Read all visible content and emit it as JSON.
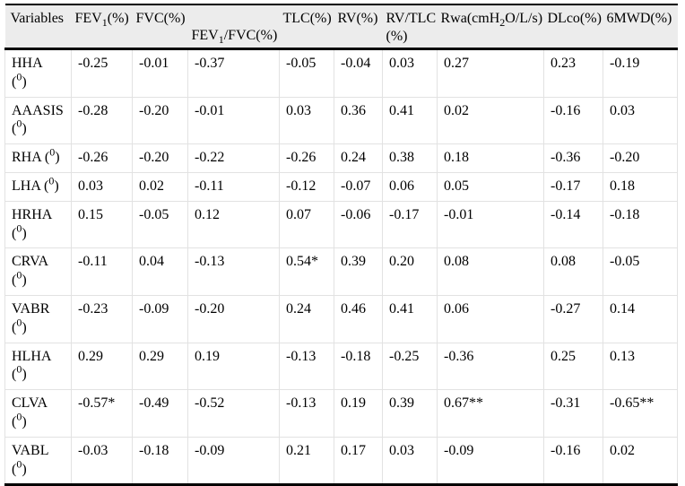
{
  "table": {
    "colors": {
      "header_bg": "#ececec",
      "border_heavy": "#000000",
      "border_light": "#e2e2e2",
      "text": "#000000"
    },
    "headers": [
      {
        "pre": "Variables"
      },
      {
        "pre": "FEV",
        "sub": "1",
        "post": "(%)"
      },
      {
        "pre": "FVC(%)"
      },
      {
        "pre": "FEV",
        "sub": "1",
        "post": "/FVC(%)"
      },
      {
        "pre": "TLC(%)"
      },
      {
        "pre": "RV(%)"
      },
      {
        "line1": "RV/TLC",
        "line2": "(%)"
      },
      {
        "pre": "Rwa(cmH",
        "sub": "2",
        "post": "O/L/s)"
      },
      {
        "pre": "DLco(%)"
      },
      {
        "pre": "6MWD(%)"
      }
    ],
    "rows": [
      {
        "label": {
          "name": "HHA",
          "deg": "0",
          "two_line": true
        },
        "values": [
          "-0.25",
          "-0.01",
          "-0.37",
          "-0.05",
          "-0.04",
          "0.03",
          "0.27",
          "0.23",
          "-0.19"
        ]
      },
      {
        "label": {
          "name": "AAASIS",
          "deg": "0",
          "two_line": true
        },
        "values": [
          "-0.28",
          "-0.20",
          "-0.01",
          "0.03",
          "0.36",
          "0.41",
          "0.02",
          "-0.16",
          "0.03"
        ]
      },
      {
        "label": {
          "name": "RHA",
          "deg": "0",
          "two_line": false
        },
        "values": [
          "-0.26",
          "-0.20",
          "-0.22",
          "-0.26",
          "0.24",
          "0.38",
          "0.18",
          "-0.36",
          "-0.20"
        ]
      },
      {
        "label": {
          "name": "LHA",
          "deg": "0",
          "two_line": false
        },
        "values": [
          "0.03",
          "0.02",
          "-0.11",
          "-0.12",
          "-0.07",
          "0.06",
          "0.05",
          "-0.17",
          "0.18"
        ]
      },
      {
        "label": {
          "name": "HRHA",
          "deg": "0",
          "two_line": true
        },
        "values": [
          "0.15",
          "-0.05",
          "0.12",
          "0.07",
          "-0.06",
          "-0.17",
          "-0.01",
          "-0.14",
          "-0.18"
        ]
      },
      {
        "label": {
          "name": "CRVA",
          "deg": "0",
          "two_line": true
        },
        "values": [
          "-0.11",
          "0.04",
          "-0.13",
          "0.54*",
          "0.39",
          "0.20",
          "0.08",
          "0.08",
          "-0.05"
        ]
      },
      {
        "label": {
          "name": "VABR",
          "deg": "0",
          "two_line": true
        },
        "values": [
          "-0.23",
          "-0.09",
          "-0.20",
          "0.24",
          "0.46",
          "0.41",
          "0.06",
          "-0.27",
          "0.14"
        ]
      },
      {
        "label": {
          "name": "HLHA",
          "deg": "0",
          "two_line": true
        },
        "values": [
          "0.29",
          "0.29",
          "0.19",
          "-0.13",
          "-0.18",
          "-0.25",
          "-0.36",
          "0.25",
          "0.13"
        ]
      },
      {
        "label": {
          "name": "CLVA",
          "deg": "0",
          "two_line": true
        },
        "values": [
          "-0.57*",
          "-0.49",
          "-0.52",
          "-0.13",
          "0.19",
          "0.39",
          "0.67**",
          "-0.31",
          "-0.65**"
        ]
      },
      {
        "label": {
          "name": "VABL",
          "deg": "0",
          "two_line": true
        },
        "values": [
          "-0.03",
          "-0.18",
          "-0.09",
          "0.21",
          "0.17",
          "0.03",
          "-0.09",
          "-0.16",
          "0.02"
        ]
      }
    ]
  }
}
